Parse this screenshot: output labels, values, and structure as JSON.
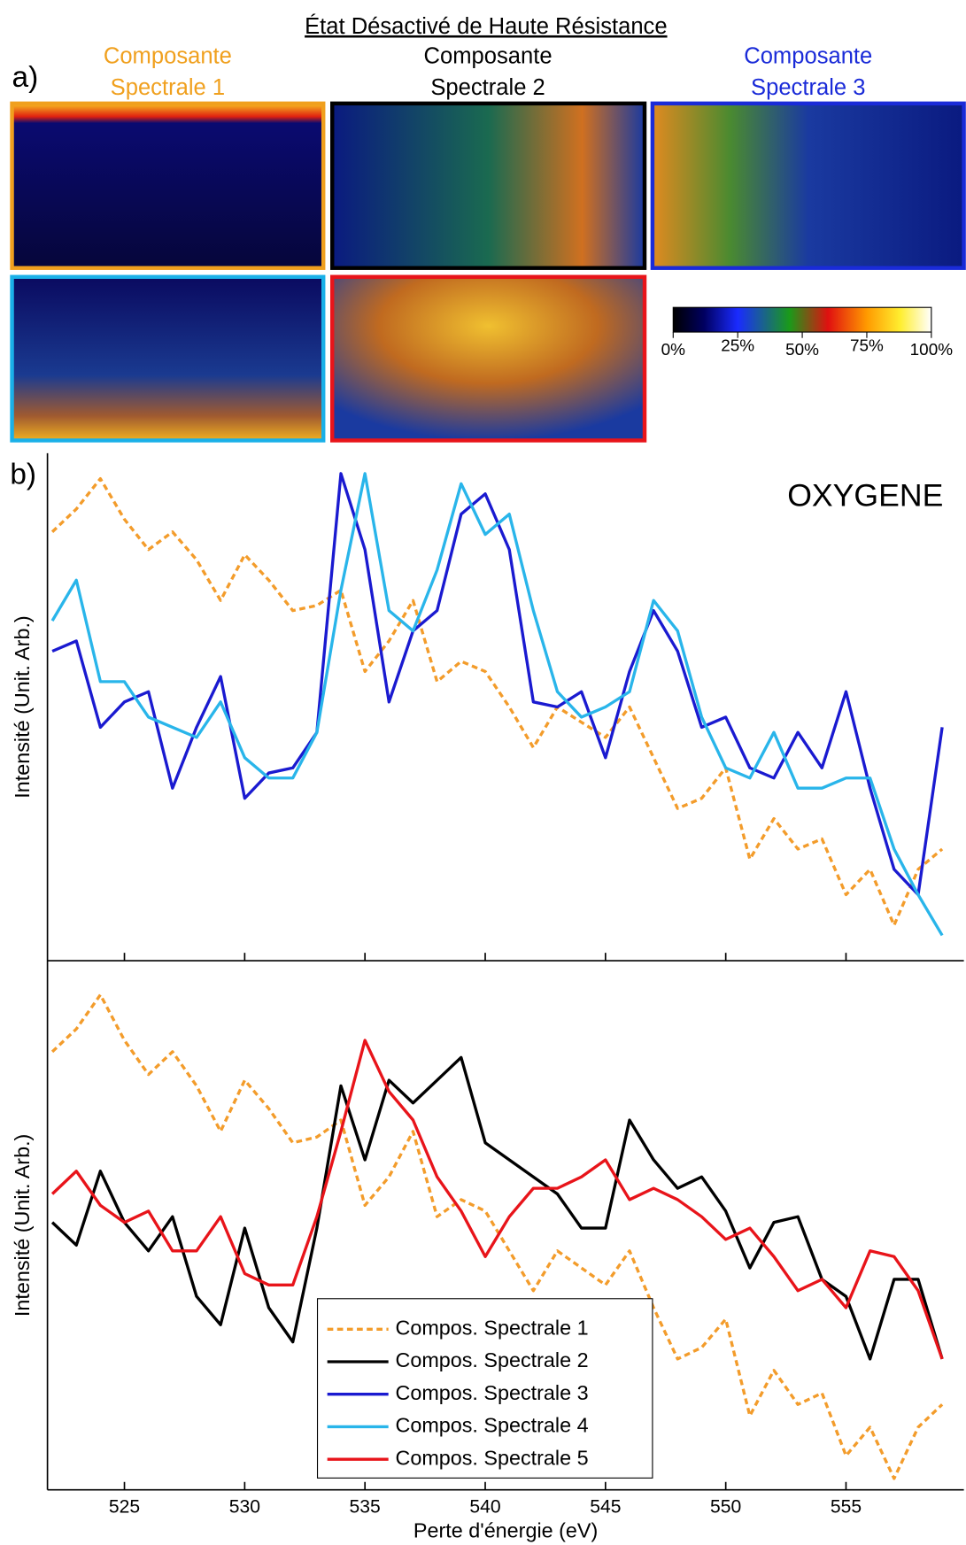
{
  "title": "État Désactivé de Haute Résistance",
  "panel_a": {
    "label": "a)",
    "components": [
      {
        "lines": [
          "Composante",
          "Spectrale 1"
        ],
        "color": "#f0a01e"
      },
      {
        "lines": [
          "Composante",
          "Spectrale 2"
        ],
        "color": "#000000"
      },
      {
        "lines": [
          "Composante",
          "Spectrale 3"
        ],
        "color": "#1a2bd8"
      }
    ],
    "map_borders": [
      "#f0a01e",
      "#000000",
      "#1a2bd8",
      "#1ab0e8",
      "#e8141a"
    ],
    "colorbar": {
      "lim": [
        0,
        100
      ],
      "ticks": [
        {
          "value": 0,
          "label": "0%"
        },
        {
          "value": 25,
          "label": "25%"
        },
        {
          "value": 50,
          "label": "50%"
        },
        {
          "value": 75,
          "label": "75%"
        },
        {
          "value": 100,
          "label": "100%"
        }
      ]
    }
  },
  "chart_data": [
    {
      "type": "line",
      "panel_label": "b)",
      "annotation": "OXYGENE",
      "ylabel": "Intensité (Unit. Arb.)",
      "xlim": [
        521.8,
        559.9
      ],
      "ylim": [
        0,
        1
      ],
      "x": [
        522,
        523,
        524,
        525,
        526,
        527,
        528,
        529,
        530,
        531,
        532,
        533,
        534,
        535,
        536,
        537,
        538,
        539,
        540,
        541,
        542,
        543,
        544,
        545,
        546,
        547,
        548,
        549,
        550,
        551,
        552,
        553,
        554,
        555,
        556,
        557,
        558,
        559
      ],
      "series": [
        {
          "name": "Compos. Spectrale 1",
          "color": "#f39c2b",
          "dashed": true,
          "values": [
            0.845,
            0.89,
            0.95,
            0.87,
            0.81,
            0.845,
            0.79,
            0.71,
            0.8,
            0.75,
            0.69,
            0.7,
            0.73,
            0.57,
            0.63,
            0.71,
            0.55,
            0.59,
            0.57,
            0.5,
            0.42,
            0.5,
            0.47,
            0.44,
            0.5,
            0.4,
            0.3,
            0.32,
            0.38,
            0.2,
            0.28,
            0.22,
            0.24,
            0.13,
            0.18,
            0.07,
            0.18,
            0.22
          ]
        },
        {
          "name": "Compos. Spectrale 3",
          "color": "#1a1ad0",
          "dashed": false,
          "values": [
            0.61,
            0.63,
            0.46,
            0.51,
            0.53,
            0.34,
            0.46,
            0.56,
            0.32,
            0.37,
            0.38,
            0.45,
            0.96,
            0.81,
            0.51,
            0.65,
            0.69,
            0.88,
            0.92,
            0.81,
            0.51,
            0.5,
            0.53,
            0.4,
            0.57,
            0.69,
            0.61,
            0.46,
            0.48,
            0.38,
            0.36,
            0.45,
            0.38,
            0.53,
            0.34,
            0.18,
            0.13,
            0.46
          ]
        },
        {
          "name": "Compos. Spectrale 4",
          "color": "#29b5ea",
          "dashed": false,
          "values": [
            0.67,
            0.75,
            0.55,
            0.55,
            0.48,
            0.46,
            0.44,
            0.51,
            0.4,
            0.36,
            0.36,
            0.45,
            0.73,
            0.96,
            0.69,
            0.65,
            0.77,
            0.94,
            0.84,
            0.88,
            0.69,
            0.53,
            0.48,
            0.5,
            0.53,
            0.71,
            0.65,
            0.48,
            0.38,
            0.36,
            0.45,
            0.34,
            0.34,
            0.36,
            0.36,
            0.22,
            0.13,
            0.05
          ]
        }
      ]
    },
    {
      "type": "line",
      "ylabel": "Intensité (Unit. Arb.)",
      "xlabel": "Perte d'énergie (eV)",
      "xlim": [
        521.8,
        559.9
      ],
      "ylim": [
        0.07,
        1
      ],
      "xticks": [
        525,
        530,
        535,
        540,
        545,
        550,
        555
      ],
      "x": [
        522,
        523,
        524,
        525,
        526,
        527,
        528,
        529,
        530,
        531,
        532,
        533,
        534,
        535,
        536,
        537,
        538,
        539,
        540,
        541,
        542,
        543,
        544,
        545,
        546,
        547,
        548,
        549,
        550,
        551,
        552,
        553,
        554,
        555,
        556,
        557,
        558,
        559
      ],
      "series": [
        {
          "color": "#f39c2b",
          "dashed": true,
          "values": [
            0.84,
            0.88,
            0.94,
            0.86,
            0.8,
            0.84,
            0.78,
            0.7,
            0.79,
            0.74,
            0.68,
            0.69,
            0.72,
            0.57,
            0.62,
            0.7,
            0.55,
            0.58,
            0.56,
            0.49,
            0.42,
            0.49,
            0.46,
            0.43,
            0.49,
            0.39,
            0.3,
            0.32,
            0.37,
            0.2,
            0.28,
            0.22,
            0.24,
            0.13,
            0.18,
            0.09,
            0.18,
            0.22
          ]
        },
        {
          "name": "Compos. Spectrale 2",
          "color": "#000000",
          "dashed": false,
          "values": [
            0.54,
            0.5,
            0.63,
            0.54,
            0.49,
            0.55,
            0.41,
            0.36,
            0.53,
            0.39,
            0.33,
            0.53,
            0.78,
            0.65,
            0.79,
            0.75,
            0.79,
            0.83,
            0.68,
            0.65,
            0.62,
            0.59,
            0.53,
            0.53,
            0.72,
            0.65,
            0.6,
            0.62,
            0.56,
            0.46,
            0.54,
            0.55,
            0.44,
            0.41,
            0.3,
            0.44,
            0.44,
            0.3
          ]
        },
        {
          "name": "Compos. Spectrale 5",
          "color": "#e8141a",
          "dashed": false,
          "values": [
            0.59,
            0.63,
            0.57,
            0.54,
            0.56,
            0.49,
            0.49,
            0.55,
            0.45,
            0.43,
            0.43,
            0.55,
            0.7,
            0.86,
            0.77,
            0.72,
            0.62,
            0.56,
            0.48,
            0.55,
            0.6,
            0.6,
            0.62,
            0.65,
            0.58,
            0.6,
            0.58,
            0.55,
            0.51,
            0.53,
            0.48,
            0.42,
            0.44,
            0.39,
            0.49,
            0.48,
            0.42,
            0.3
          ]
        }
      ]
    }
  ]
}
